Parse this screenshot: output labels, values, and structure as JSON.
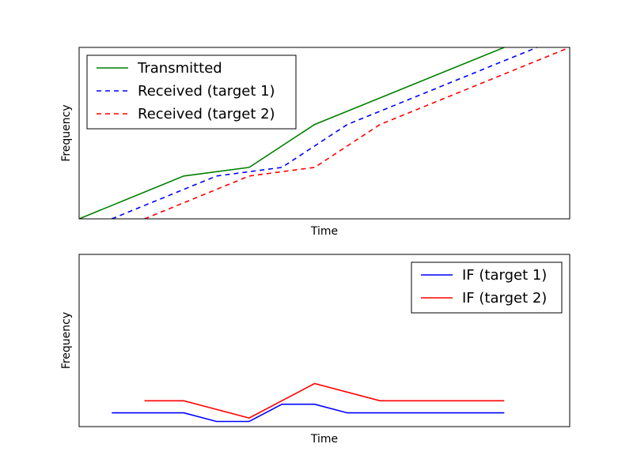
{
  "chart_data": [
    {
      "type": "line",
      "xlabel": "Time",
      "ylabel": "Frequency",
      "xlim": [
        0,
        15
      ],
      "ylim": [
        0,
        10
      ],
      "grid": false,
      "legend_position": "upper-left",
      "series": [
        {
          "name": "Transmitted",
          "color": "#008000",
          "dash": "solid",
          "x": [
            0,
            3.2,
            5.2,
            7.2,
            13.0
          ],
          "y": [
            0,
            2.5,
            3.0,
            5.5,
            10.0
          ]
        },
        {
          "name": "Received (target 1)",
          "color": "#0000ff",
          "dash": "dashed",
          "x": [
            1.0,
            4.2,
            6.2,
            8.2,
            14.0
          ],
          "y": [
            0,
            2.5,
            3.0,
            5.5,
            10.0
          ]
        },
        {
          "name": "Received (target 2)",
          "color": "#ff0000",
          "dash": "dashed",
          "x": [
            2.0,
            5.2,
            7.2,
            9.2,
            15.0
          ],
          "y": [
            0,
            2.5,
            3.0,
            5.5,
            10.0
          ]
        }
      ]
    },
    {
      "type": "line",
      "xlabel": "Time",
      "ylabel": "Frequency",
      "xlim": [
        0,
        15
      ],
      "ylim": [
        0,
        10
      ],
      "grid": false,
      "legend_position": "upper-right",
      "series": [
        {
          "name": "IF (target 1)",
          "color": "#0000ff",
          "dash": "solid",
          "x": [
            1.0,
            3.2,
            4.2,
            5.2,
            6.2,
            7.2,
            8.2,
            13.0
          ],
          "y": [
            0.8,
            0.8,
            0.3,
            0.3,
            1.3,
            1.3,
            0.8,
            0.8
          ]
        },
        {
          "name": "IF (target 2)",
          "color": "#ff0000",
          "dash": "solid",
          "x": [
            2.0,
            3.2,
            5.2,
            7.2,
            9.2,
            13.0
          ],
          "y": [
            1.5,
            1.5,
            0.5,
            2.5,
            1.5,
            1.5
          ]
        }
      ]
    }
  ]
}
